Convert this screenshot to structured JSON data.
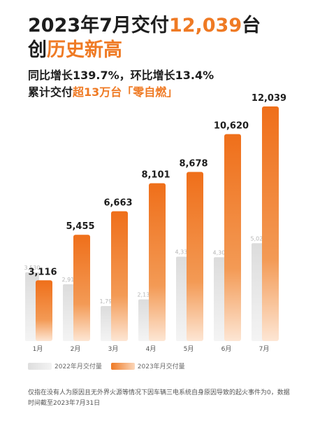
{
  "headline": {
    "line1_prefix": "2023年7月交付",
    "line1_number": "12,039",
    "line1_suffix": "台",
    "line2_prefix": "创",
    "line2_accent": "历史新高",
    "sub1": "同比增长139.7%，环比增长13.4%",
    "sub2_prefix": "累计交付",
    "sub2_accent": "超13万台「零自燃」"
  },
  "chart_data": {
    "type": "bar",
    "categories": [
      "1月",
      "2月",
      "3月",
      "4月",
      "5月",
      "6月",
      "7月"
    ],
    "series": [
      {
        "name": "2022年月交付量",
        "values": [
          3530,
          2916,
          1795,
          2137,
          4330,
          4302,
          5022
        ],
        "labels": [
          "3,530",
          "2,916",
          "1,795",
          "2,137",
          "4,330",
          "4,302",
          "5,022"
        ],
        "color": "#e6e6e6"
      },
      {
        "name": "2023年月交付量",
        "values": [
          3116,
          5455,
          6663,
          8101,
          8678,
          10620,
          12039
        ],
        "labels": [
          "3,116",
          "5,455",
          "6,663",
          "8,101",
          "8,678",
          "10,620",
          "12,039"
        ],
        "color": "#ef7a24"
      }
    ],
    "ylim": [
      0,
      13000
    ],
    "legend_position": "bottom-left",
    "grid": false
  },
  "legend": {
    "label_2022": "2022年月交付量",
    "label_2023": "2023年月交付量"
  },
  "footnote": "仅指在没有人为原因且无外界火源等情况下因车辆三电系统自身原因导致的起火事件为0，数据时间截至2023年7月31日"
}
